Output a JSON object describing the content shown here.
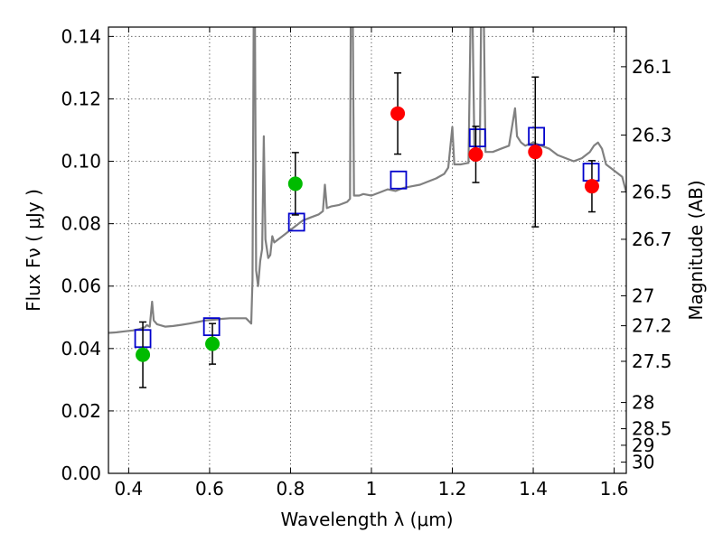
{
  "chart_data": {
    "type": "scatter",
    "xlabel": "Wavelength  λ (μm)",
    "ylabel": "Flux  Fν  ( μJy )",
    "y2label": "Magnitude (AB)",
    "xlim": [
      0.35,
      1.63
    ],
    "ylim": [
      0.0,
      0.143
    ],
    "grid": true,
    "x_ticks": [
      0.4,
      0.6,
      0.8,
      1.0,
      1.2,
      1.4,
      1.6
    ],
    "x_tick_labels": [
      "0.4",
      "0.6",
      "0.8",
      "1",
      "1.2",
      "1.4",
      "1.6"
    ],
    "y_ticks": [
      0.0,
      0.02,
      0.04,
      0.06,
      0.08,
      0.1,
      0.12,
      0.14
    ],
    "y_tick_labels": [
      "0.00",
      "0.02",
      "0.04",
      "0.06",
      "0.08",
      "0.10",
      "0.12",
      "0.14"
    ],
    "y2_ticks": [
      {
        "label": "26.1",
        "flux": 0.1303
      },
      {
        "label": "26.3",
        "flux": 0.1084
      },
      {
        "label": "26.5",
        "flux": 0.0902
      },
      {
        "label": "26.7",
        "flux": 0.075
      },
      {
        "label": "27",
        "flux": 0.0569
      },
      {
        "label": "27.2",
        "flux": 0.0473
      },
      {
        "label": "27.5",
        "flux": 0.0359
      },
      {
        "label": "28",
        "flux": 0.0227
      },
      {
        "label": "28.5",
        "flux": 0.0143
      },
      {
        "label": "29",
        "flux": 0.009
      },
      {
        "label": "30",
        "flux": 0.0036
      }
    ],
    "series": [
      {
        "kind": "spectrum",
        "color": "#808080",
        "points": [
          [
            0.35,
            0.045
          ],
          [
            0.37,
            0.0452
          ],
          [
            0.39,
            0.0455
          ],
          [
            0.41,
            0.0458
          ],
          [
            0.425,
            0.0462
          ],
          [
            0.44,
            0.0468
          ],
          [
            0.445,
            0.0475
          ],
          [
            0.452,
            0.047
          ],
          [
            0.458,
            0.055
          ],
          [
            0.462,
            0.049
          ],
          [
            0.47,
            0.0478
          ],
          [
            0.49,
            0.047
          ],
          [
            0.51,
            0.0472
          ],
          [
            0.53,
            0.0476
          ],
          [
            0.55,
            0.048
          ],
          [
            0.57,
            0.0485
          ],
          [
            0.59,
            0.049
          ],
          [
            0.61,
            0.0492
          ],
          [
            0.63,
            0.0495
          ],
          [
            0.65,
            0.0497
          ],
          [
            0.67,
            0.0497
          ],
          [
            0.69,
            0.0497
          ],
          [
            0.703,
            0.048
          ],
          [
            0.706,
            0.062
          ],
          [
            0.709,
            0.145
          ],
          [
            0.712,
            0.145
          ],
          [
            0.715,
            0.065
          ],
          [
            0.72,
            0.06
          ],
          [
            0.725,
            0.068
          ],
          [
            0.73,
            0.072
          ],
          [
            0.734,
            0.108
          ],
          [
            0.738,
            0.075
          ],
          [
            0.745,
            0.069
          ],
          [
            0.75,
            0.07
          ],
          [
            0.755,
            0.076
          ],
          [
            0.76,
            0.074
          ],
          [
            0.77,
            0.075
          ],
          [
            0.78,
            0.076
          ],
          [
            0.79,
            0.077
          ],
          [
            0.8,
            0.078
          ],
          [
            0.81,
            0.079
          ],
          [
            0.82,
            0.08
          ],
          [
            0.83,
            0.081
          ],
          [
            0.85,
            0.082
          ],
          [
            0.87,
            0.083
          ],
          [
            0.88,
            0.084
          ],
          [
            0.885,
            0.0925
          ],
          [
            0.89,
            0.085
          ],
          [
            0.9,
            0.0855
          ],
          [
            0.92,
            0.086
          ],
          [
            0.94,
            0.087
          ],
          [
            0.947,
            0.088
          ],
          [
            0.949,
            0.145
          ],
          [
            0.954,
            0.145
          ],
          [
            0.957,
            0.089
          ],
          [
            0.97,
            0.089
          ],
          [
            0.98,
            0.0895
          ],
          [
            1.0,
            0.089
          ],
          [
            1.02,
            0.09
          ],
          [
            1.04,
            0.091
          ],
          [
            1.06,
            0.0905
          ],
          [
            1.08,
            0.0915
          ],
          [
            1.1,
            0.092
          ],
          [
            1.12,
            0.0925
          ],
          [
            1.14,
            0.0935
          ],
          [
            1.16,
            0.0945
          ],
          [
            1.18,
            0.096
          ],
          [
            1.19,
            0.098
          ],
          [
            1.2,
            0.111
          ],
          [
            1.205,
            0.099
          ],
          [
            1.22,
            0.099
          ],
          [
            1.24,
            0.0995
          ],
          [
            1.245,
            0.145
          ],
          [
            1.25,
            0.145
          ],
          [
            1.255,
            0.101
          ],
          [
            1.26,
            0.102
          ],
          [
            1.265,
            0.102
          ],
          [
            1.268,
            0.103
          ],
          [
            1.271,
            0.145
          ],
          [
            1.278,
            0.145
          ],
          [
            1.282,
            0.103
          ],
          [
            1.3,
            0.103
          ],
          [
            1.32,
            0.104
          ],
          [
            1.34,
            0.105
          ],
          [
            1.355,
            0.117
          ],
          [
            1.36,
            0.108
          ],
          [
            1.37,
            0.106
          ],
          [
            1.38,
            0.105
          ],
          [
            1.4,
            0.106
          ],
          [
            1.42,
            0.105
          ],
          [
            1.44,
            0.104
          ],
          [
            1.46,
            0.102
          ],
          [
            1.48,
            0.101
          ],
          [
            1.5,
            0.1
          ],
          [
            1.52,
            0.101
          ],
          [
            1.54,
            0.103
          ],
          [
            1.55,
            0.105
          ],
          [
            1.56,
            0.106
          ],
          [
            1.57,
            0.104
          ],
          [
            1.58,
            0.099
          ],
          [
            1.6,
            0.097
          ],
          [
            1.62,
            0.095
          ],
          [
            1.63,
            0.09
          ]
        ]
      },
      {
        "kind": "model-boxes",
        "color": "#0000cc",
        "points": [
          {
            "x": 0.435,
            "y": 0.0432
          },
          {
            "x": 0.605,
            "y": 0.047
          },
          {
            "x": 0.815,
            "y": 0.0805
          },
          {
            "x": 1.067,
            "y": 0.094
          },
          {
            "x": 1.262,
            "y": 0.1075
          },
          {
            "x": 1.408,
            "y": 0.108
          },
          {
            "x": 1.543,
            "y": 0.0965
          }
        ]
      },
      {
        "kind": "observed-green",
        "color": "#00bb00",
        "points": [
          {
            "x": 0.435,
            "y": 0.038,
            "err": 0.0105
          },
          {
            "x": 0.607,
            "y": 0.0415,
            "err": 0.0065
          },
          {
            "x": 0.812,
            "y": 0.0928,
            "err": 0.01
          }
        ]
      },
      {
        "kind": "observed-red",
        "color": "#ff0000",
        "points": [
          {
            "x": 1.065,
            "y": 0.1153,
            "err": 0.013
          },
          {
            "x": 1.258,
            "y": 0.1022,
            "err": 0.009
          },
          {
            "x": 1.405,
            "y": 0.103,
            "err": 0.024
          },
          {
            "x": 1.545,
            "y": 0.092,
            "err": 0.0082
          }
        ]
      }
    ]
  }
}
